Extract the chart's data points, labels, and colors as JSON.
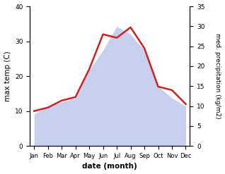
{
  "months": [
    "Jan",
    "Feb",
    "Mar",
    "Apr",
    "May",
    "Jun",
    "Jul",
    "Aug",
    "Sep",
    "Oct",
    "Nov",
    "Dec"
  ],
  "temp": [
    10,
    11,
    13,
    14,
    22,
    32,
    31,
    34,
    28,
    17,
    16,
    12
  ],
  "precip": [
    8,
    10,
    11,
    12,
    19,
    24,
    30,
    28,
    24,
    15,
    12,
    10
  ],
  "temp_color": "#cc2222",
  "precip_fill_color": "#c8d0f0",
  "xlabel": "date (month)",
  "ylabel_left": "max temp (C)",
  "ylabel_right": "med. precipitation (kg/m2)",
  "ylim_left": [
    0,
    40
  ],
  "ylim_right": [
    0,
    35
  ],
  "yticks_left": [
    0,
    10,
    20,
    30,
    40
  ],
  "yticks_right": [
    0,
    5,
    10,
    15,
    20,
    25,
    30,
    35
  ],
  "background_color": "#ffffff",
  "temp_linewidth": 1.8
}
